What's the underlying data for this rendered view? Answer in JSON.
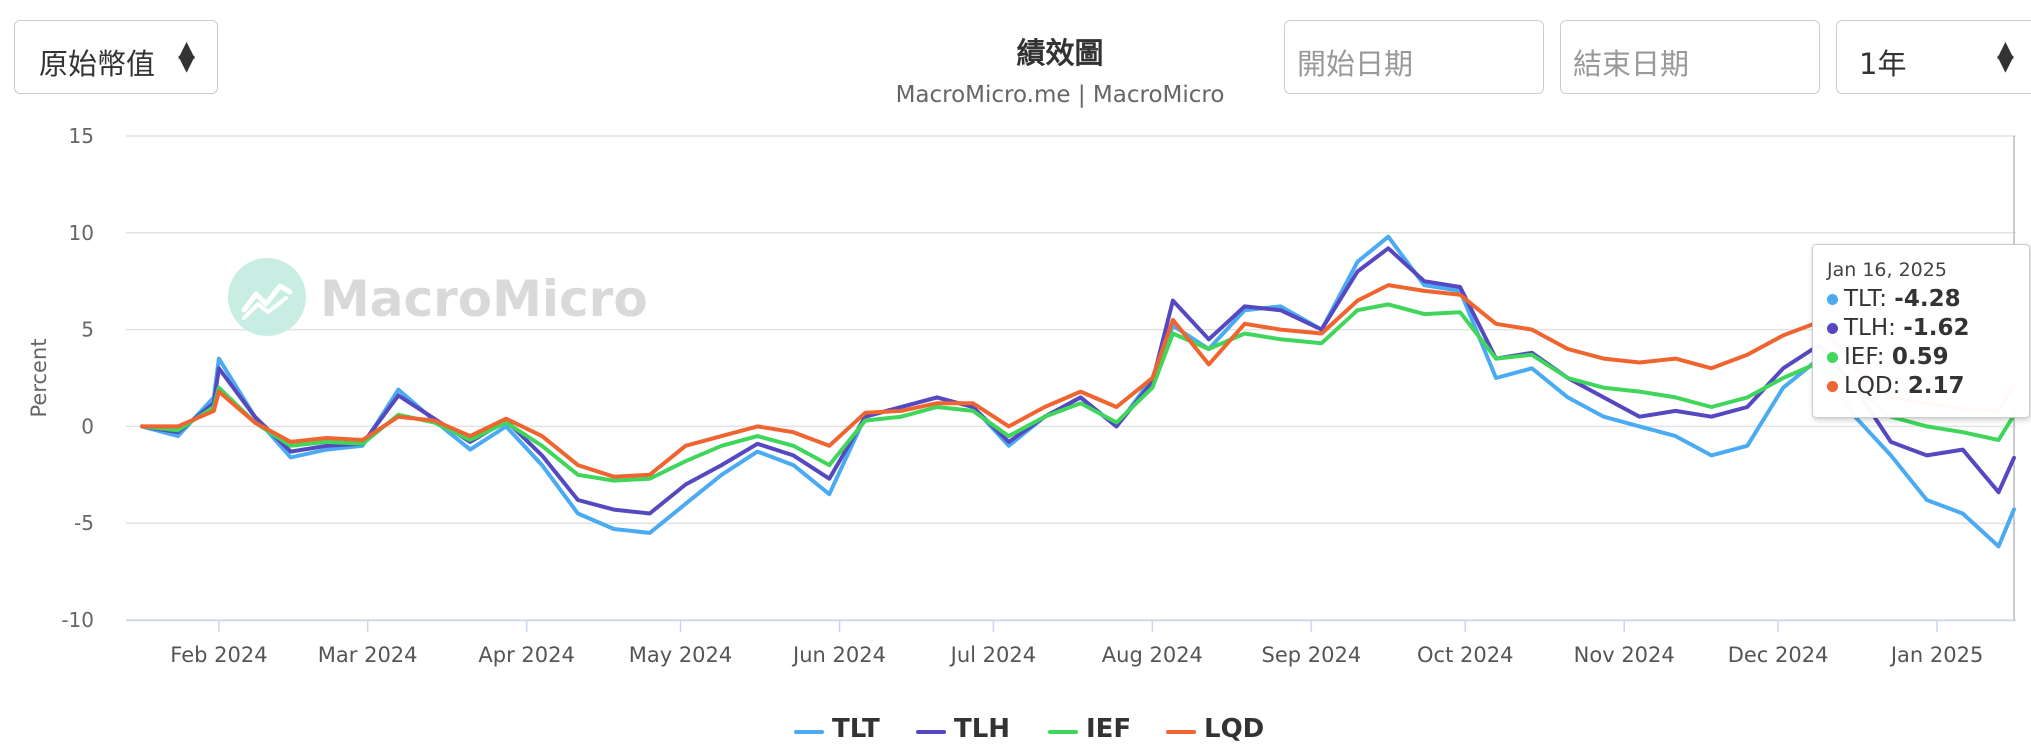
{
  "controls": {
    "currency_select": "原始幣值",
    "start_date_placeholder": "開始日期",
    "end_date_placeholder": "結束日期",
    "range_select": "1年"
  },
  "header": {
    "title": "績效圖",
    "subtitle": "MacroMicro.me | MacroMicro"
  },
  "watermark": "MacroMicro",
  "tooltip": {
    "date": "Jan 16, 2025",
    "rows": [
      {
        "name": "TLT",
        "value": "-4.28",
        "color": "#4aabf2"
      },
      {
        "name": "TLH",
        "value": "-1.62",
        "color": "#5548c0"
      },
      {
        "name": "IEF",
        "value": "0.59",
        "color": "#3fd65b"
      },
      {
        "name": "LQD",
        "value": "2.17",
        "color": "#f0642f"
      }
    ]
  },
  "chart_data": {
    "type": "line",
    "ylabel": "Percent",
    "ylim": [
      -10,
      15
    ],
    "yticks": [
      15,
      10,
      5,
      0,
      -5,
      -10
    ],
    "x_range": [
      "2024-01-17",
      "2025-01-16"
    ],
    "x_ticks": [
      {
        "label": "Feb 2024",
        "date": "2024-02-01"
      },
      {
        "label": "Mar 2024",
        "date": "2024-03-01"
      },
      {
        "label": "Apr 2024",
        "date": "2024-04-01"
      },
      {
        "label": "May 2024",
        "date": "2024-05-01"
      },
      {
        "label": "Jun 2024",
        "date": "2024-06-01"
      },
      {
        "label": "Jul 2024",
        "date": "2024-07-01"
      },
      {
        "label": "Aug 2024",
        "date": "2024-08-01"
      },
      {
        "label": "Sep 2024",
        "date": "2024-09-01"
      },
      {
        "label": "Oct 2024",
        "date": "2024-10-01"
      },
      {
        "label": "Nov 2024",
        "date": "2024-11-01"
      },
      {
        "label": "Dec 2024",
        "date": "2024-12-01"
      },
      {
        "label": "Jan 2025",
        "date": "2025-01-01"
      }
    ],
    "x": [
      "2024-01-17",
      "2024-01-24",
      "2024-01-31",
      "2024-02-01",
      "2024-02-08",
      "2024-02-15",
      "2024-02-22",
      "2024-02-29",
      "2024-03-07",
      "2024-03-14",
      "2024-03-21",
      "2024-03-28",
      "2024-04-04",
      "2024-04-11",
      "2024-04-18",
      "2024-04-25",
      "2024-05-02",
      "2024-05-09",
      "2024-05-16",
      "2024-05-23",
      "2024-05-30",
      "2024-06-06",
      "2024-06-13",
      "2024-06-20",
      "2024-06-27",
      "2024-07-04",
      "2024-07-11",
      "2024-07-18",
      "2024-07-25",
      "2024-08-01",
      "2024-08-05",
      "2024-08-12",
      "2024-08-19",
      "2024-08-26",
      "2024-09-03",
      "2024-09-10",
      "2024-09-16",
      "2024-09-23",
      "2024-09-30",
      "2024-10-07",
      "2024-10-14",
      "2024-10-21",
      "2024-10-28",
      "2024-11-04",
      "2024-11-11",
      "2024-11-18",
      "2024-11-25",
      "2024-12-02",
      "2024-12-09",
      "2024-12-16",
      "2024-12-23",
      "2024-12-30",
      "2025-01-06",
      "2025-01-13",
      "2025-01-16"
    ],
    "series": [
      {
        "name": "TLT",
        "color": "#4aabf2",
        "values": [
          0,
          -0.5,
          1.5,
          3.5,
          0.5,
          -1.6,
          -1.2,
          -1.0,
          1.9,
          0.3,
          -1.2,
          0.0,
          -2.0,
          -4.5,
          -5.3,
          -5.5,
          -4.0,
          -2.5,
          -1.3,
          -2.0,
          -3.5,
          0.5,
          1.0,
          1.5,
          1.0,
          -1.0,
          0.5,
          1.5,
          0.0,
          2.5,
          5.2,
          4.0,
          6.0,
          6.2,
          5.0,
          8.5,
          9.8,
          7.3,
          7.0,
          2.5,
          3.0,
          1.5,
          0.5,
          0.0,
          -0.5,
          -1.5,
          -1.0,
          2.0,
          3.5,
          0.5,
          -1.5,
          -3.8,
          -4.5,
          -6.2,
          -4.28
        ]
      },
      {
        "name": "TLH",
        "color": "#5548c0",
        "values": [
          0,
          -0.3,
          1.2,
          3.0,
          0.5,
          -1.3,
          -1.0,
          -0.9,
          1.6,
          0.4,
          -0.8,
          0.3,
          -1.5,
          -3.8,
          -4.3,
          -4.5,
          -3.0,
          -2.0,
          -0.9,
          -1.5,
          -2.7,
          0.5,
          1.0,
          1.5,
          1.0,
          -0.8,
          0.5,
          1.5,
          0.0,
          2.3,
          6.5,
          4.5,
          6.2,
          6.0,
          5.0,
          8.0,
          9.2,
          7.5,
          7.2,
          3.5,
          3.8,
          2.5,
          1.5,
          0.5,
          0.8,
          0.5,
          1.0,
          3.0,
          4.2,
          2.0,
          -0.8,
          -1.5,
          -1.2,
          -3.4,
          -1.62
        ]
      },
      {
        "name": "IEF",
        "color": "#3fd65b",
        "values": [
          0,
          -0.2,
          1.0,
          2.0,
          0.2,
          -1.0,
          -0.8,
          -0.9,
          0.6,
          0.2,
          -0.7,
          0.2,
          -1.0,
          -2.5,
          -2.8,
          -2.7,
          -1.8,
          -1.0,
          -0.5,
          -1.0,
          -2.0,
          0.3,
          0.5,
          1.0,
          0.8,
          -0.5,
          0.5,
          1.2,
          0.2,
          2.0,
          4.8,
          4.0,
          4.8,
          4.5,
          4.3,
          6.0,
          6.3,
          5.8,
          5.9,
          3.5,
          3.7,
          2.5,
          2.0,
          1.8,
          1.5,
          1.0,
          1.5,
          2.5,
          3.3,
          2.0,
          0.5,
          0.0,
          -0.3,
          -0.7,
          0.59
        ]
      },
      {
        "name": "LQD",
        "color": "#f0642f",
        "values": [
          0,
          0,
          0.8,
          1.8,
          0.2,
          -0.8,
          -0.6,
          -0.7,
          0.5,
          0.3,
          -0.5,
          0.4,
          -0.5,
          -2.0,
          -2.6,
          -2.5,
          -1.0,
          -0.5,
          0.0,
          -0.3,
          -1.0,
          0.7,
          0.8,
          1.2,
          1.2,
          0.0,
          1.0,
          1.8,
          1.0,
          2.5,
          5.5,
          3.2,
          5.3,
          5.0,
          4.8,
          6.5,
          7.3,
          7.0,
          6.8,
          5.3,
          5.0,
          4.0,
          3.5,
          3.3,
          3.5,
          3.0,
          3.7,
          4.7,
          5.4,
          3.0,
          1.5,
          1.2,
          0.9,
          0.8,
          2.17
        ]
      }
    ],
    "legend": {
      "position": "bottom"
    },
    "grid": true
  }
}
